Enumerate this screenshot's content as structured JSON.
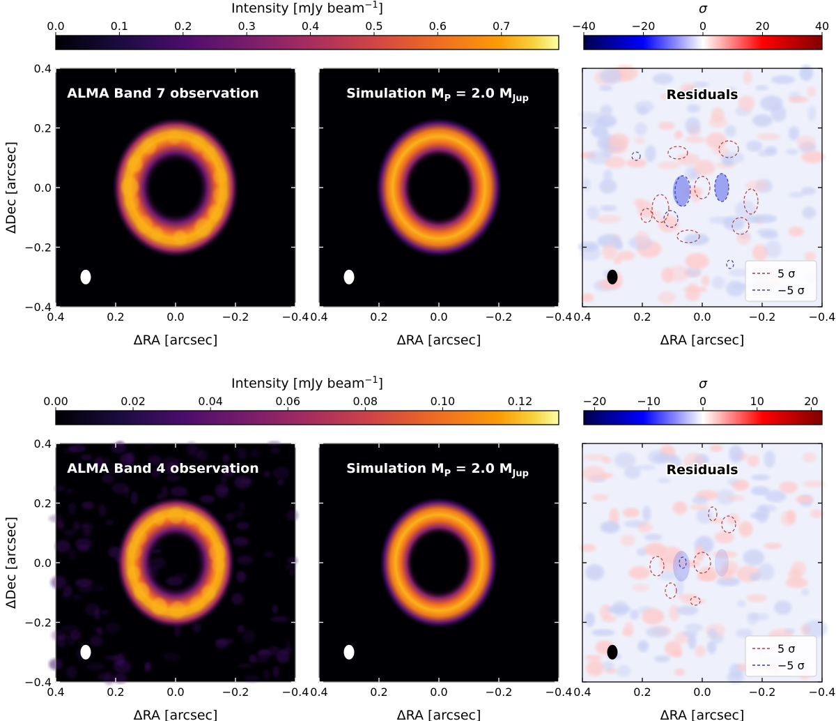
{
  "chart_data": {
    "type": "heatmap",
    "shared": {
      "xlabel": "ΔRA  [arcsec]",
      "ylabel": "ΔDec  [arcsec]",
      "xlim": [
        0.4,
        -0.4
      ],
      "ylim": [
        -0.4,
        0.4
      ],
      "x_ticks": [
        0.4,
        0.2,
        0.0,
        -0.2,
        -0.4
      ],
      "x_tick_labels": [
        "0.4",
        "0.2",
        "0.0",
        "−0.2",
        "−0.4"
      ],
      "y_ticks": [
        0.4,
        0.2,
        0.0,
        -0.2,
        -0.4
      ],
      "y_tick_labels": [
        "0.4",
        "0.2",
        "0.0",
        "−0.2",
        "−0.4"
      ],
      "intensity_label": "Intensity [mJy beam",
      "intensity_label_sup": "−1",
      "intensity_label_close": "]",
      "sigma_label": "σ",
      "intensity_colormap": "inferno",
      "residual_colormap": "seismic",
      "beam_position": [
        0.3,
        -0.3
      ],
      "legend_position": "lower-right",
      "legend_entries": [
        {
          "label": "5 σ",
          "color": "#b03a3a",
          "style": "dashed"
        },
        {
          "label": "−5 σ",
          "color": "#3a3ab0",
          "style": "dashed"
        }
      ]
    },
    "rows": [
      {
        "band": "Band 7",
        "intensity_colorbar": {
          "range": [
            0.0,
            0.79
          ],
          "ticks": [
            0.0,
            0.1,
            0.2,
            0.3,
            0.4,
            0.5,
            0.6,
            0.7
          ],
          "tick_labels": [
            "0.0",
            "0.1",
            "0.2",
            "0.3",
            "0.4",
            "0.5",
            "0.6",
            "0.7"
          ]
        },
        "sigma_colorbar": {
          "range": [
            -40,
            40
          ],
          "ticks": [
            -40,
            -20,
            0,
            20,
            40
          ],
          "tick_labels": [
            "−40",
            "−20",
            "0",
            "20",
            "40"
          ]
        },
        "panels": [
          {
            "title": "ALMA Band 7 observation",
            "kind": "observation",
            "ring_radius_arcsec": 0.16,
            "central_source": true,
            "peak_mJy": 0.79
          },
          {
            "title_prefix": "Simulation ",
            "title_m": "M",
            "title_m_sub": "P",
            "title_eq": " = 2.0 M",
            "title_unit_sub": "Jup",
            "kind": "simulation",
            "planet_mass_MJup": 2.0,
            "ring_radius_arcsec": 0.16,
            "central_source": false
          },
          {
            "title": "Residuals",
            "kind": "residuals",
            "peak_sigma": 40,
            "contour_levels_sigma": [
              5,
              -5
            ]
          }
        ]
      },
      {
        "band": "Band 4",
        "intensity_colorbar": {
          "range": [
            0.0,
            0.13
          ],
          "ticks": [
            0.0,
            0.02,
            0.04,
            0.06,
            0.08,
            0.1,
            0.12
          ],
          "tick_labels": [
            "0.00",
            "0.02",
            "0.04",
            "0.06",
            "0.08",
            "0.10",
            "0.12"
          ]
        },
        "sigma_colorbar": {
          "range": [
            -22,
            22
          ],
          "ticks": [
            -20,
            -10,
            0,
            10,
            20
          ],
          "tick_labels": [
            "−20",
            "−10",
            "0",
            "10",
            "20"
          ]
        },
        "panels": [
          {
            "title": "ALMA Band 4 observation",
            "kind": "observation",
            "ring_radius_arcsec": 0.15,
            "central_source": true,
            "peak_mJy": 0.13
          },
          {
            "title_prefix": "Simulation ",
            "title_m": "M",
            "title_m_sub": "P",
            "title_eq": " = 2.0 M",
            "title_unit_sub": "Jup",
            "kind": "simulation",
            "planet_mass_MJup": 2.0,
            "ring_radius_arcsec": 0.15,
            "central_source": false
          },
          {
            "title": "Residuals",
            "kind": "residuals",
            "peak_sigma": 22,
            "contour_levels_sigma": [
              5,
              -5
            ]
          }
        ]
      }
    ]
  }
}
